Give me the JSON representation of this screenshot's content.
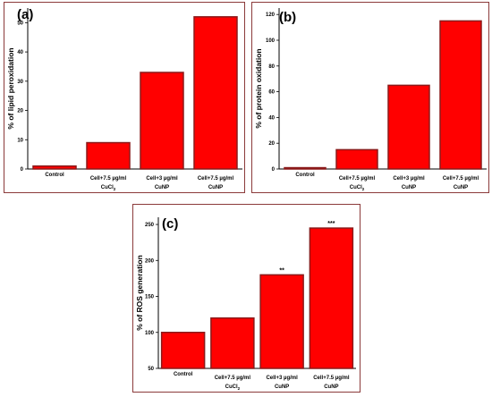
{
  "colors": {
    "bar_fill": "#ff0000",
    "bar_stroke": "#8b1a1a",
    "panel_border": "#8b3a3a",
    "axis": "#000000"
  },
  "chart_data": [
    {
      "panel_label": "(a)",
      "type": "bar",
      "categories": [
        {
          "line1": "Control",
          "line2": "",
          "sub": ""
        },
        {
          "line1": "Cell+7.5 µg/ml",
          "line2": "CuCl",
          "sub": "2"
        },
        {
          "line1": "Cell+3 µg/ml",
          "line2": "CuNP",
          "sub": ""
        },
        {
          "line1": "Cell+7.5 µg/ml",
          "line2": "CuNP",
          "sub": ""
        }
      ],
      "values": [
        1,
        9,
        33,
        52
      ],
      "significance": [
        "",
        "",
        "",
        ""
      ],
      "ylabel": "% of lipid peroxidation",
      "ylim": [
        0,
        55
      ],
      "yticks": [
        0,
        10,
        20,
        30,
        40,
        50
      ]
    },
    {
      "panel_label": "(b)",
      "type": "bar",
      "categories": [
        {
          "line1": "Control",
          "line2": "",
          "sub": ""
        },
        {
          "line1": "Cell+7.5 µg/ml",
          "line2": "CuCl",
          "sub": "2"
        },
        {
          "line1": "Cell+3 µg/ml",
          "line2": "CuNP",
          "sub": ""
        },
        {
          "line1": "Cell+7.5 µg/ml",
          "line2": "CuNP",
          "sub": ""
        }
      ],
      "values": [
        1,
        15,
        65,
        115
      ],
      "significance": [
        "",
        "",
        "",
        ""
      ],
      "ylabel": "% of protein oxidation",
      "ylim": [
        0,
        125
      ],
      "yticks": [
        0,
        20,
        40,
        60,
        80,
        100,
        120
      ]
    },
    {
      "panel_label": "(c)",
      "type": "bar",
      "categories": [
        {
          "line1": "Control",
          "line2": "",
          "sub": ""
        },
        {
          "line1": "Cell+7.5 µg/ml",
          "line2": "CuCl",
          "sub": "2"
        },
        {
          "line1": "Cell+3 µg/ml",
          "line2": "CuNP",
          "sub": ""
        },
        {
          "line1": "Cell+7.5 µg/ml",
          "line2": "CuNP",
          "sub": ""
        }
      ],
      "values": [
        100,
        120,
        180,
        245
      ],
      "significance": [
        "",
        "",
        "**",
        "***"
      ],
      "ylabel": "% of ROS generation",
      "ylim": [
        50,
        260
      ],
      "yticks": [
        50,
        100,
        150,
        200,
        250
      ]
    }
  ]
}
